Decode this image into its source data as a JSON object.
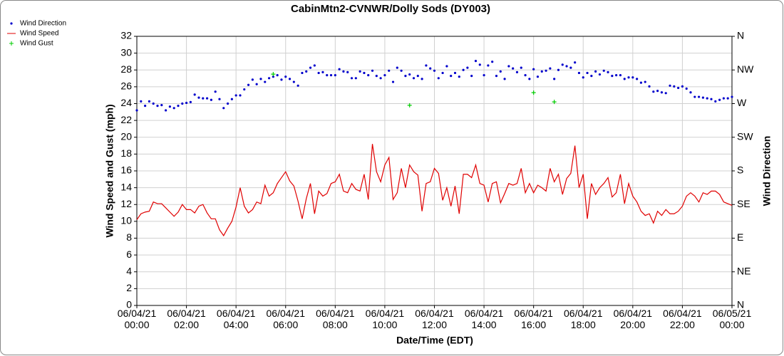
{
  "chart_data": {
    "type": "line",
    "title": "CabinMtn2-CVNWR/Dolly Sods (DY003)",
    "x_label": "Date/Time (EDT)",
    "y_label": "Wind Speed and Gust (mph)",
    "y2_label": "Wind Direction",
    "x": [
      "06/04/21 00:00",
      "06/04/21 00:10",
      "06/04/21 00:20",
      "06/04/21 00:30",
      "06/04/21 00:40",
      "06/04/21 00:50",
      "06/04/21 01:00",
      "06/04/21 01:10",
      "06/04/21 01:20",
      "06/04/21 01:30",
      "06/04/21 01:40",
      "06/04/21 01:50",
      "06/04/21 02:00",
      "06/04/21 02:10",
      "06/04/21 02:20",
      "06/04/21 02:30",
      "06/04/21 02:40",
      "06/04/21 02:50",
      "06/04/21 03:00",
      "06/04/21 03:10",
      "06/04/21 03:20",
      "06/04/21 03:30",
      "06/04/21 03:40",
      "06/04/21 03:50",
      "06/04/21 04:00",
      "06/04/21 04:10",
      "06/04/21 04:20",
      "06/04/21 04:30",
      "06/04/21 04:40",
      "06/04/21 04:50",
      "06/04/21 05:00",
      "06/04/21 05:10",
      "06/04/21 05:20",
      "06/04/21 05:30",
      "06/04/21 05:40",
      "06/04/21 05:50",
      "06/04/21 06:00",
      "06/04/21 06:10",
      "06/04/21 06:20",
      "06/04/21 06:30",
      "06/04/21 06:40",
      "06/04/21 06:50",
      "06/04/21 07:00",
      "06/04/21 07:10",
      "06/04/21 07:20",
      "06/04/21 07:30",
      "06/04/21 07:40",
      "06/04/21 07:50",
      "06/04/21 08:00",
      "06/04/21 08:10",
      "06/04/21 08:20",
      "06/04/21 08:30",
      "06/04/21 08:40",
      "06/04/21 08:50",
      "06/04/21 09:00",
      "06/04/21 09:10",
      "06/04/21 09:20",
      "06/04/21 09:30",
      "06/04/21 09:40",
      "06/04/21 09:50",
      "06/04/21 10:00",
      "06/04/21 10:10",
      "06/04/21 10:20",
      "06/04/21 10:30",
      "06/04/21 10:40",
      "06/04/21 10:50",
      "06/04/21 11:00",
      "06/04/21 11:10",
      "06/04/21 11:20",
      "06/04/21 11:30",
      "06/04/21 11:40",
      "06/04/21 11:50",
      "06/04/21 12:00",
      "06/04/21 12:10",
      "06/04/21 12:20",
      "06/04/21 12:30",
      "06/04/21 12:40",
      "06/04/21 12:50",
      "06/04/21 13:00",
      "06/04/21 13:10",
      "06/04/21 13:20",
      "06/04/21 13:30",
      "06/04/21 13:40",
      "06/04/21 13:50",
      "06/04/21 14:00",
      "06/04/21 14:10",
      "06/04/21 14:20",
      "06/04/21 14:30",
      "06/04/21 14:40",
      "06/04/21 14:50",
      "06/04/21 15:00",
      "06/04/21 15:10",
      "06/04/21 15:20",
      "06/04/21 15:30",
      "06/04/21 15:40",
      "06/04/21 15:50",
      "06/04/21 16:00",
      "06/04/21 16:10",
      "06/04/21 16:20",
      "06/04/21 16:30",
      "06/04/21 16:40",
      "06/04/21 16:50",
      "06/04/21 17:00",
      "06/04/21 17:10",
      "06/04/21 17:20",
      "06/04/21 17:30",
      "06/04/21 17:40",
      "06/04/21 17:50",
      "06/04/21 18:00",
      "06/04/21 18:10",
      "06/04/21 18:20",
      "06/04/21 18:30",
      "06/04/21 18:40",
      "06/04/21 18:50",
      "06/04/21 19:00",
      "06/04/21 19:10",
      "06/04/21 19:20",
      "06/04/21 19:30",
      "06/04/21 19:40",
      "06/04/21 19:50",
      "06/04/21 20:00",
      "06/04/21 20:10",
      "06/04/21 20:20",
      "06/04/21 20:30",
      "06/04/21 20:40",
      "06/04/21 20:50",
      "06/04/21 21:00",
      "06/04/21 21:10",
      "06/04/21 21:20",
      "06/04/21 21:30",
      "06/04/21 21:40",
      "06/04/21 21:50",
      "06/04/21 22:00",
      "06/04/21 22:10",
      "06/04/21 22:20",
      "06/04/21 22:30",
      "06/04/21 22:40",
      "06/04/21 22:50",
      "06/04/21 23:00",
      "06/04/21 23:10",
      "06/04/21 23:20",
      "06/04/21 23:30",
      "06/04/21 23:40",
      "06/04/21 23:50",
      "06/05/21 00:00"
    ],
    "series": [
      {
        "name": "Wind Direction",
        "color": "#0000cc",
        "marker": "dot",
        "axis": "y2",
        "values": [
          261,
          273,
          267,
          273,
          270,
          267,
          268,
          261,
          266,
          264,
          267,
          270,
          271,
          272,
          282,
          278,
          277,
          277,
          275,
          286,
          276,
          264,
          270,
          276,
          281,
          281,
          289,
          295,
          302,
          296,
          303,
          299,
          304,
          306,
          308,
          302,
          306,
          303,
          299,
          294,
          311,
          313,
          318,
          321,
          311,
          312,
          308,
          308,
          308,
          316,
          313,
          312,
          304,
          304,
          313,
          311,
          308,
          314,
          307,
          304,
          308,
          314,
          299,
          318,
          314,
          307,
          309,
          304,
          307,
          303,
          321,
          317,
          314,
          304,
          311,
          320,
          307,
          311,
          306,
          315,
          318,
          307,
          327,
          322,
          308,
          321,
          326,
          307,
          313,
          303,
          320,
          317,
          312,
          318,
          308,
          303,
          316,
          306,
          313,
          314,
          317,
          303,
          315,
          322,
          320,
          318,
          325,
          311,
          305,
          311,
          307,
          313,
          309,
          314,
          312,
          307,
          308,
          308,
          303,
          305,
          305,
          303,
          298,
          299,
          293,
          286,
          287,
          285,
          284,
          294,
          293,
          291,
          293,
          290,
          285,
          279,
          279,
          278,
          277,
          276,
          273,
          275,
          277,
          277,
          279
        ]
      },
      {
        "name": "Wind Speed",
        "color": "#e00000",
        "marker": "line",
        "values": [
          10.2,
          10.9,
          11.1,
          11.2,
          12.3,
          12.1,
          12.1,
          11.6,
          11.1,
          10.6,
          11.1,
          12.0,
          11.4,
          11.4,
          11.0,
          11.8,
          12.0,
          11.0,
          10.3,
          10.3,
          9.0,
          8.3,
          9.2,
          10.0,
          11.7,
          14.0,
          11.8,
          11.0,
          11.4,
          12.3,
          12.1,
          14.3,
          13.0,
          13.4,
          14.5,
          15.2,
          15.9,
          14.8,
          14.2,
          12.4,
          10.3,
          12.7,
          14.5,
          10.9,
          13.6,
          13.0,
          13.3,
          14.5,
          14.7,
          15.6,
          13.6,
          13.4,
          14.5,
          13.8,
          13.6,
          15.6,
          12.6,
          19.2,
          15.9,
          14.7,
          16.7,
          17.6,
          12.6,
          13.4,
          16.3,
          14.0,
          16.7,
          15.9,
          15.5,
          11.2,
          14.5,
          14.7,
          16.3,
          15.7,
          12.5,
          14.0,
          11.8,
          14.2,
          10.9,
          15.6,
          15.6,
          15.2,
          16.7,
          14.5,
          14.3,
          12.3,
          14.5,
          14.7,
          12.2,
          13.3,
          14.5,
          14.3,
          14.5,
          16.3,
          13.4,
          14.5,
          13.4,
          14.3,
          14.0,
          13.6,
          16.3,
          14.7,
          15.6,
          13.2,
          15.1,
          15.7,
          19.0,
          14.0,
          15.6,
          10.3,
          14.5,
          13.2,
          14.0,
          14.5,
          15.2,
          12.9,
          13.4,
          15.6,
          12.1,
          14.5,
          13.0,
          12.3,
          11.2,
          10.7,
          10.9,
          9.8,
          11.2,
          10.7,
          11.4,
          10.9,
          10.9,
          11.2,
          11.8,
          13.0,
          13.4,
          13.0,
          12.3,
          13.4,
          13.2,
          13.6,
          13.6,
          13.2,
          12.3,
          12.1,
          11.9
        ]
      },
      {
        "name": "Wind Gust",
        "color": "#00cc00",
        "marker": "plus",
        "x": [
          "06/04/21 05:30",
          "06/04/21 11:00",
          "06/04/21 16:00",
          "06/04/21 16:50"
        ],
        "values": [
          27.5,
          23.8,
          25.3,
          24.2
        ]
      }
    ],
    "xlim": [
      "06/04/21 00:00",
      "06/05/21 00:00"
    ],
    "xticks": [
      "06/04/21 00:00",
      "06/04/21 02:00",
      "06/04/21 04:00",
      "06/04/21 06:00",
      "06/04/21 08:00",
      "06/04/21 10:00",
      "06/04/21 12:00",
      "06/04/21 14:00",
      "06/04/21 16:00",
      "06/04/21 18:00",
      "06/04/21 20:00",
      "06/04/21 22:00",
      "06/05/21 00:00"
    ],
    "ylim": [
      0,
      32
    ],
    "yticks": [
      0,
      2,
      4,
      6,
      8,
      10,
      12,
      14,
      16,
      18,
      20,
      22,
      24,
      26,
      28,
      30,
      32
    ],
    "y2lim": [
      0,
      360
    ],
    "y2ticks": [
      {
        "value": 0,
        "label": "N"
      },
      {
        "value": 45,
        "label": "NE"
      },
      {
        "value": 90,
        "label": "E"
      },
      {
        "value": 135,
        "label": "SE"
      },
      {
        "value": 180,
        "label": "S"
      },
      {
        "value": 225,
        "label": "SW"
      },
      {
        "value": 270,
        "label": "W"
      },
      {
        "value": 315,
        "label": "NW"
      },
      {
        "value": 360,
        "label": "N"
      }
    ],
    "grid": true,
    "legend": "top-left"
  }
}
